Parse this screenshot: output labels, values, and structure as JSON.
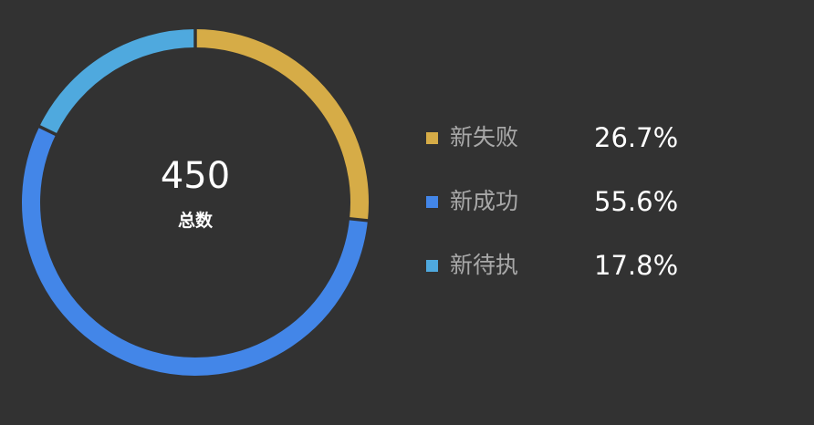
{
  "chart_data": {
    "type": "pie",
    "variant": "donut",
    "center": {
      "value": "450",
      "label": "总数"
    },
    "total": 450,
    "slices": [
      {
        "name": "新失败",
        "percent_label": "26.7%",
        "value": 120,
        "color": "#d6ac47"
      },
      {
        "name": "新成功",
        "percent_label": "55.6%",
        "value": 250,
        "color": "#4386e8"
      },
      {
        "name": "新待执",
        "percent_label": "17.8%",
        "value": 80,
        "color": "#4fa9de"
      }
    ],
    "legend_placement": "right"
  },
  "colors": {
    "background": "#323232",
    "legend_text": "#a8a8a8",
    "value_text": "#ffffff"
  }
}
